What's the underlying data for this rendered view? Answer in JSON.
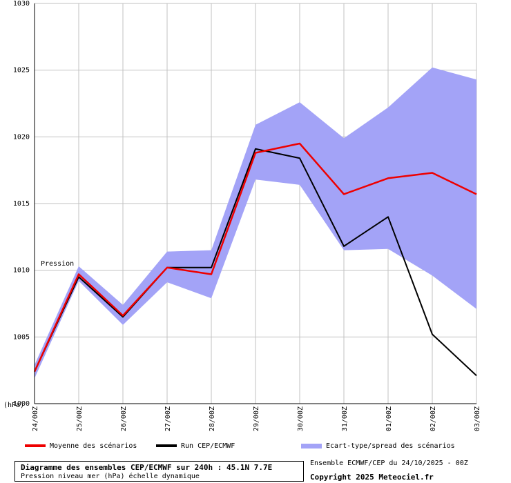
{
  "chart_data": {
    "type": "line",
    "ylabel": "(hPa)",
    "annotation": "Pression",
    "ylim": [
      1000,
      1030
    ],
    "yticks": [
      1000,
      1005,
      1010,
      1015,
      1020,
      1025,
      1030
    ],
    "grid": true,
    "categories": [
      "24/00Z",
      "25/00Z",
      "26/00Z",
      "27/00Z",
      "28/00Z",
      "29/00Z",
      "30/00Z",
      "31/00Z",
      "01/00Z",
      "02/00Z",
      "03/00Z"
    ],
    "series": [
      {
        "name": "Moyenne des scénarios",
        "color": "#ee0000",
        "values": [
          1002.4,
          1009.7,
          1006.6,
          1010.2,
          1009.7,
          1018.8,
          1019.5,
          1015.7,
          1016.9,
          1017.3,
          1015.7
        ]
      },
      {
        "name": "Run CEP/ECMWF",
        "color": "#000000",
        "values": [
          1002.4,
          1009.5,
          1006.5,
          1010.2,
          1010.2,
          1019.1,
          1018.4,
          1011.8,
          1014.0,
          1005.2,
          1002.1
        ]
      }
    ],
    "spread": {
      "name": "Ecart-type/spread des scénarios",
      "color": "#a3a3f7",
      "upper": [
        1002.9,
        1010.3,
        1007.4,
        1011.4,
        1011.5,
        1020.9,
        1022.6,
        1019.9,
        1022.2,
        1025.2,
        1024.3
      ],
      "lower": [
        1001.9,
        1009.2,
        1005.9,
        1009.1,
        1007.9,
        1016.8,
        1016.4,
        1011.5,
        1011.6,
        1009.6,
        1007.1
      ]
    }
  },
  "info": {
    "title": "Diagramme des ensembles CEP/ECMWF sur 240h : 45.1N 7.7E",
    "subtitle": "Pression niveau mer (hPa) échelle dynamique"
  },
  "meta": {
    "run": "Ensemble ECMWF/CEP du 24/10/2025 - 00Z",
    "copyright": "Copyright 2025 Meteociel.fr"
  }
}
